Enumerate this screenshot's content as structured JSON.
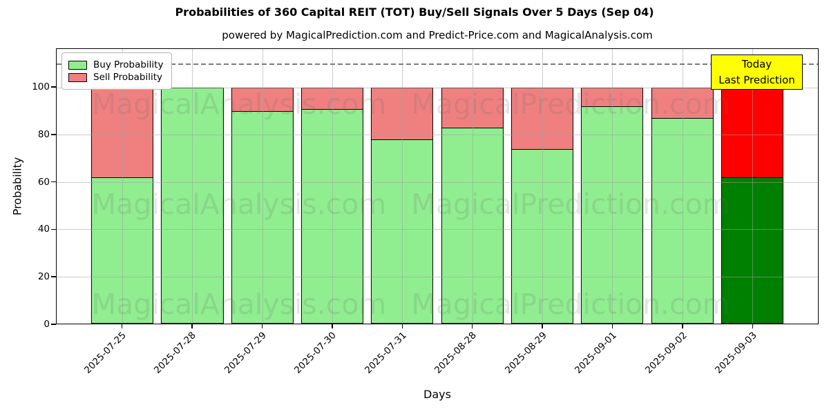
{
  "title": "Probabilities of 360 Capital REIT (TOT) Buy/Sell Signals Over 5 Days (Sep 04)",
  "subtitle": "powered by MagicalPrediction.com and Predict-Price.com and MagicalAnalysis.com",
  "legend": {
    "items": [
      {
        "label": "Buy Probability",
        "color": "#90EE90"
      },
      {
        "label": "Sell Probability",
        "color": "#F08080"
      }
    ]
  },
  "annotation": {
    "line1": "Today",
    "line2": "Last Prediction",
    "bg_color": "#FFFF00"
  },
  "watermarks": {
    "left_text": "MagicalAnalysis.com",
    "right_text": "MagicalPrediction.com"
  },
  "chart_data": {
    "type": "bar",
    "stacked": true,
    "title": "Probabilities of 360 Capital REIT (TOT) Buy/Sell Signals Over 5 Days (Sep 04)",
    "xlabel": "Days",
    "ylabel": "Probability",
    "categories": [
      "2025-07-25",
      "2025-07-28",
      "2025-07-29",
      "2025-07-30",
      "2025-07-31",
      "2025-08-28",
      "2025-08-29",
      "2025-09-01",
      "2025-09-02",
      "2025-09-03"
    ],
    "series": [
      {
        "name": "Buy Probability",
        "color": "#90EE90",
        "today_color": "#008000",
        "values": [
          62,
          100,
          90,
          91,
          78,
          83,
          74,
          92,
          87,
          62
        ]
      },
      {
        "name": "Sell Probability",
        "color": "#F08080",
        "today_color": "#FF0000",
        "values": [
          38,
          0,
          10,
          9,
          22,
          17,
          26,
          8,
          13,
          38
        ]
      }
    ],
    "today_index": 9,
    "yticks": [
      0,
      20,
      40,
      60,
      80,
      100
    ],
    "ylim": [
      0,
      116.28
    ],
    "dashed_line_y": 110,
    "grid": true,
    "legend_position": "upper left"
  }
}
